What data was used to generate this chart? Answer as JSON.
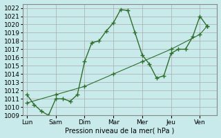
{
  "title": "",
  "xlabel": "Pression niveau de la mer( hPa )",
  "ylabel": "",
  "background_color": "#c8eaea",
  "grid_color": "#aaaaaa",
  "line_color": "#2d6e2d",
  "ylim": [
    1009,
    1022.5
  ],
  "x_labels": [
    "Lun",
    "Sam",
    "Dim",
    "Mar",
    "Mer",
    "Jeu",
    "Ven"
  ],
  "x_ticks": [
    0,
    2,
    4,
    6,
    8,
    10,
    12
  ],
  "line1_x": [
    0,
    0.5,
    1,
    1.5,
    2,
    2.5,
    3,
    3.5,
    4,
    4.5,
    5,
    5.5,
    6,
    6.5,
    7,
    7.5,
    8,
    8.5,
    9,
    9.5,
    10,
    10.5,
    11,
    11.5,
    12,
    12.5
  ],
  "line1_y": [
    1011.5,
    1010.3,
    1009.5,
    1009.0,
    1011.0,
    1011.0,
    1010.7,
    1011.5,
    1015.5,
    1017.8,
    1018.0,
    1019.2,
    1020.2,
    1021.8,
    1021.7,
    1019.0,
    1016.3,
    1015.2,
    1013.5,
    1013.8,
    1016.5,
    1017.0,
    1017.0,
    1018.5,
    1021.0,
    1019.8
  ],
  "line2_x": [
    0,
    2,
    4,
    6,
    8,
    10,
    12,
    12.5
  ],
  "line2_y": [
    1010.5,
    1011.5,
    1012.5,
    1014.0,
    1015.5,
    1017.0,
    1018.8,
    1019.8
  ],
  "label_fontsize": 7,
  "tick_fontsize": 6.5
}
